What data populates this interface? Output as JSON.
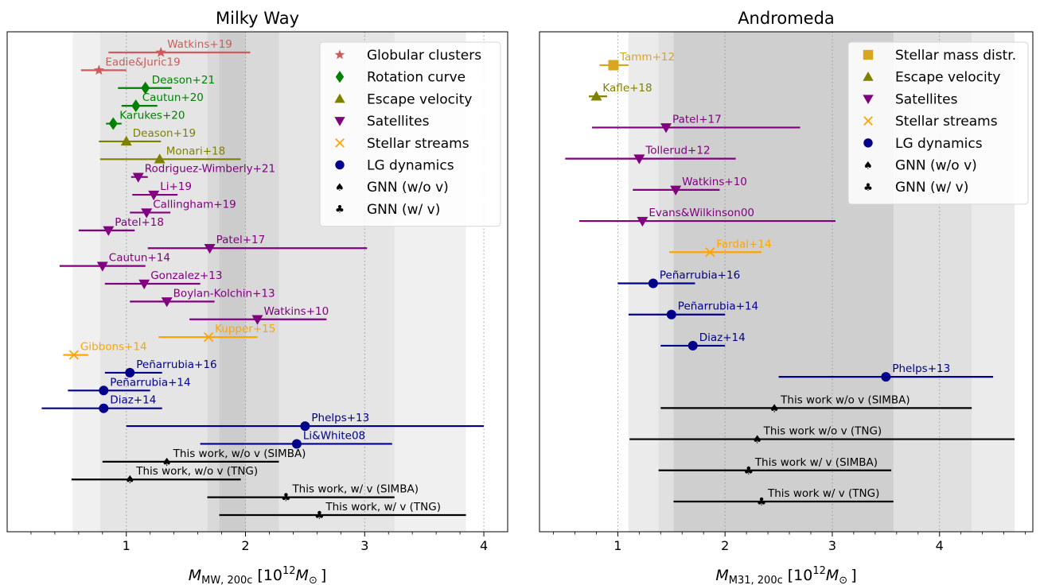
{
  "panels": [
    {
      "title": "Milky Way",
      "xlabel_main": "M",
      "xlabel_sub": "MW, 200c",
      "xlabel_units": "[10",
      "xlabel_exp": "12",
      "xlabel_msun": "M",
      "xlabel_msun_sub": "⊙",
      "xlabel_close": "]",
      "chart_data": {
        "type": "scatter",
        "xlim": [
          0,
          4.2
        ],
        "xticks": [
          1,
          2,
          3,
          4
        ],
        "xtick_labels": [
          "1",
          "2",
          "3",
          "4"
        ],
        "grid": "vertical dotted",
        "legend_position": "top-right",
        "shaded_bands": [
          [
            0.55,
            3.85
          ],
          [
            0.78,
            3.25
          ],
          [
            1.68,
            2.28
          ],
          [
            1.78,
            2.0
          ]
        ],
        "legend": [
          {
            "label": "Globular clusters",
            "marker": "star",
            "color": "#cd5c5c"
          },
          {
            "label": "Rotation curve",
            "marker": "diamond",
            "color": "#008000"
          },
          {
            "label": "Escape velocity",
            "marker": "triangle-up",
            "color": "#808000"
          },
          {
            "label": "Satellites",
            "marker": "triangle-down",
            "color": "#800080"
          },
          {
            "label": "Stellar streams",
            "marker": "x",
            "color": "#ffa500"
          },
          {
            "label": "LG dynamics",
            "marker": "circle",
            "color": "#00008b"
          },
          {
            "label": "GNN (w/o v)",
            "marker": "spade",
            "color": "#000000"
          },
          {
            "label": "GNN (w/ v)",
            "marker": "club",
            "color": "#000000"
          }
        ],
        "points": [
          {
            "label": "Watkins+19",
            "cat": "Globular clusters",
            "value": 1.29,
            "lo": 0.85,
            "hi": 2.04
          },
          {
            "label": "Eadie&Juric19",
            "cat": "Globular clusters",
            "value": 0.77,
            "lo": 0.62,
            "hi": 1.0
          },
          {
            "label": "Deason+21",
            "cat": "Rotation curve",
            "value": 1.16,
            "lo": 0.93,
            "hi": 1.38
          },
          {
            "label": "Cautun+20",
            "cat": "Rotation curve",
            "value": 1.08,
            "lo": 0.96,
            "hi": 1.26
          },
          {
            "label": "Karukes+20",
            "cat": "Rotation curve",
            "value": 0.89,
            "lo": 0.83,
            "hi": 0.96
          },
          {
            "label": "Deason+19",
            "cat": "Escape velocity",
            "value": 1.0,
            "lo": 0.77,
            "hi": 1.29
          },
          {
            "label": "Monari+18",
            "cat": "Escape velocity",
            "value": 1.28,
            "lo": 0.78,
            "hi": 1.96
          },
          {
            "label": "Rodriguez-Wimberly+21",
            "cat": "Satellites",
            "value": 1.1,
            "lo": 1.04,
            "hi": 1.18
          },
          {
            "label": "Li+19",
            "cat": "Satellites",
            "value": 1.23,
            "lo": 1.05,
            "hi": 1.43
          },
          {
            "label": "Callingham+19",
            "cat": "Satellites",
            "value": 1.17,
            "lo": 1.03,
            "hi": 1.37
          },
          {
            "label": "Patel+18",
            "cat": "Satellites",
            "value": 0.85,
            "lo": 0.6,
            "hi": 1.07
          },
          {
            "label": "Patel+17",
            "cat": "Satellites",
            "value": 1.7,
            "lo": 1.18,
            "hi": 3.02
          },
          {
            "label": "Cautun+14",
            "cat": "Satellites",
            "value": 0.8,
            "lo": 0.44,
            "hi": 1.16
          },
          {
            "label": "Gonzalez+13",
            "cat": "Satellites",
            "value": 1.15,
            "lo": 0.82,
            "hi": 1.62
          },
          {
            "label": "Boylan-Kolchin+13",
            "cat": "Satellites",
            "value": 1.34,
            "lo": 1.03,
            "hi": 1.74
          },
          {
            "label": "Watkins+10",
            "cat": "Satellites",
            "value": 2.1,
            "lo": 1.53,
            "hi": 2.68
          },
          {
            "label": "Kupper+15",
            "cat": "Stellar streams",
            "value": 1.69,
            "lo": 1.27,
            "hi": 2.1
          },
          {
            "label": "Gibbons+14",
            "cat": "Stellar streams",
            "value": 0.56,
            "lo": 0.47,
            "hi": 0.68
          },
          {
            "label": "Peñarrubia+16",
            "cat": "LG dynamics",
            "value": 1.03,
            "lo": 0.82,
            "hi": 1.3
          },
          {
            "label": "Peñarrubia+14",
            "cat": "LG dynamics",
            "value": 0.81,
            "lo": 0.51,
            "hi": 1.2
          },
          {
            "label": "Diaz+14",
            "cat": "LG dynamics",
            "value": 0.81,
            "lo": 0.29,
            "hi": 1.3
          },
          {
            "label": "Phelps+13",
            "cat": "LG dynamics",
            "value": 2.5,
            "lo": 1.0,
            "hi": 4.0
          },
          {
            "label": "Li&White08",
            "cat": "LG dynamics",
            "value": 2.43,
            "lo": 1.62,
            "hi": 3.23
          },
          {
            "label": "This work, w/o v (SIMBA)",
            "cat": "GNN (w/o v)",
            "value": 1.34,
            "lo": 0.8,
            "hi": 2.28
          },
          {
            "label": "This work, w/o v (TNG)",
            "cat": "GNN (w/o v)",
            "value": 1.03,
            "lo": 0.54,
            "hi": 1.96
          },
          {
            "label": "This work, w/ v (SIMBA)",
            "cat": "GNN (w/ v)",
            "value": 2.34,
            "lo": 1.68,
            "hi": 3.25
          },
          {
            "label": "This work, w/ v (TNG)",
            "cat": "GNN (w/ v)",
            "value": 2.62,
            "lo": 1.78,
            "hi": 3.85
          }
        ]
      }
    },
    {
      "title": "Andromeda",
      "xlabel_main": "M",
      "xlabel_sub": "M31, 200c",
      "xlabel_units": "[10",
      "xlabel_exp": "12",
      "xlabel_msun": "M",
      "xlabel_msun_sub": "⊙",
      "xlabel_close": "]",
      "chart_data": {
        "type": "scatter",
        "xlim": [
          0.27,
          4.87
        ],
        "xticks": [
          1,
          2,
          3,
          4
        ],
        "xtick_labels": [
          "1",
          "2",
          "3",
          "4"
        ],
        "grid": "vertical dotted",
        "legend_position": "top-right",
        "shaded_bands": [
          [
            1.1,
            4.7
          ],
          [
            1.38,
            4.3
          ],
          [
            1.52,
            3.57
          ]
        ],
        "legend": [
          {
            "label": "Stellar mass distr.",
            "marker": "square",
            "color": "#daa520"
          },
          {
            "label": "Escape velocity",
            "marker": "triangle-up",
            "color": "#808000"
          },
          {
            "label": "Satellites",
            "marker": "triangle-down",
            "color": "#800080"
          },
          {
            "label": "Stellar streams",
            "marker": "x",
            "color": "#ffa500"
          },
          {
            "label": "LG dynamics",
            "marker": "circle",
            "color": "#00008b"
          },
          {
            "label": "GNN (w/o v)",
            "marker": "spade",
            "color": "#000000"
          },
          {
            "label": "GNN (w/ v)",
            "marker": "club",
            "color": "#000000"
          }
        ],
        "points": [
          {
            "label": "Tamm+12",
            "cat": "Stellar mass distr.",
            "value": 0.96,
            "lo": 0.83,
            "hi": 1.1
          },
          {
            "label": "Kafle+18",
            "cat": "Escape velocity",
            "value": 0.8,
            "lo": 0.73,
            "hi": 0.9
          },
          {
            "label": "Patel+17",
            "cat": "Satellites",
            "value": 1.45,
            "lo": 0.76,
            "hi": 2.7
          },
          {
            "label": "Tollerud+12",
            "cat": "Satellites",
            "value": 1.2,
            "lo": 0.51,
            "hi": 2.1
          },
          {
            "label": "Watkins+10",
            "cat": "Satellites",
            "value": 1.54,
            "lo": 1.14,
            "hi": 1.95
          },
          {
            "label": "Evans&Wilkinson00",
            "cat": "Satellites",
            "value": 1.23,
            "lo": 0.64,
            "hi": 3.03
          },
          {
            "label": "Fardal+14",
            "cat": "Stellar streams",
            "value": 1.86,
            "lo": 1.48,
            "hi": 2.34
          },
          {
            "label": "Peñarrubia+16",
            "cat": "LG dynamics",
            "value": 1.33,
            "lo": 1.0,
            "hi": 1.72
          },
          {
            "label": "Peñarrubia+14",
            "cat": "LG dynamics",
            "value": 1.5,
            "lo": 1.1,
            "hi": 2.0
          },
          {
            "label": "Diaz+14",
            "cat": "LG dynamics",
            "value": 1.7,
            "lo": 1.4,
            "hi": 2.0
          },
          {
            "label": "Phelps+13",
            "cat": "LG dynamics",
            "value": 3.5,
            "lo": 2.5,
            "hi": 4.5
          },
          {
            "label": "This work w/o v (SIMBA)",
            "cat": "GNN (w/o v)",
            "value": 2.46,
            "lo": 1.4,
            "hi": 4.3
          },
          {
            "label": "This work w/o v (TNG)",
            "cat": "GNN (w/o v)",
            "value": 2.3,
            "lo": 1.11,
            "hi": 4.7
          },
          {
            "label": "This work w/ v (SIMBA)",
            "cat": "GNN (w/ v)",
            "value": 2.22,
            "lo": 1.38,
            "hi": 3.55
          },
          {
            "label": "This work w/ v (TNG)",
            "cat": "GNN (w/ v)",
            "value": 2.34,
            "lo": 1.52,
            "hi": 3.57
          }
        ]
      }
    }
  ],
  "colors": {
    "Globular clusters": "#cd5c5c",
    "Rotation curve": "#008000",
    "Escape velocity": "#808000",
    "Satellites": "#800080",
    "Stellar streams": "#ffa500",
    "LG dynamics": "#00008b",
    "Stellar mass distr.": "#daa520",
    "GNN (w/o v)": "#000000",
    "GNN (w/ v)": "#000000"
  }
}
